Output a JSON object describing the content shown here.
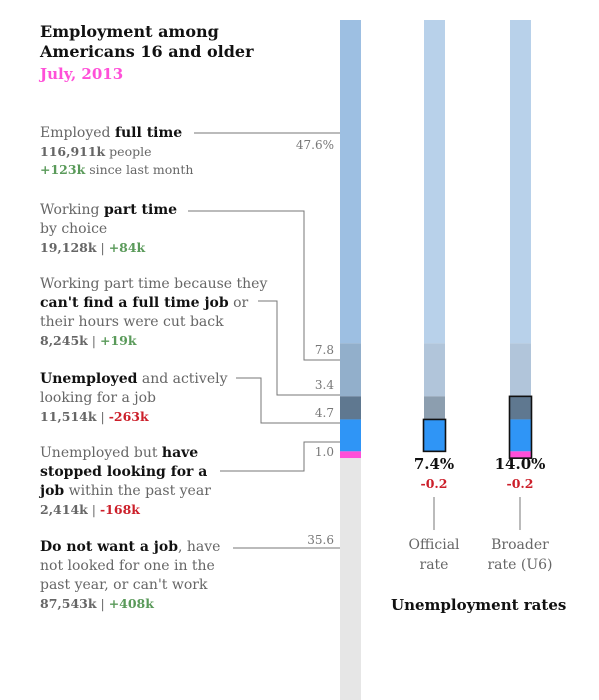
{
  "title": "Employment among Americans 16 and older",
  "title_lines": [
    "Employment among",
    "Americans 16 and older"
  ],
  "date": "July, 2013",
  "groups": [
    {
      "pre": "Employed ",
      "bold": "full time",
      "post": "",
      "stat": "116,911k",
      "stat_suffix": " people",
      "change": "+123k",
      "change_suffix": " since last month",
      "pct": "47.6%",
      "sign": "pos"
    },
    {
      "pre": "Working ",
      "bold": "part time",
      "post": " by choice",
      "stat": "19,128k",
      "change": "+84k",
      "pct": "7.8",
      "sign": "pos"
    },
    {
      "pre": "Working part time because they ",
      "bold": "can't find a full time job",
      "post": " or their hours were cut back",
      "stat": "8,245k",
      "change": "+19k",
      "pct": "3.4",
      "sign": "pos"
    },
    {
      "pre": "",
      "bold": "Unemployed",
      "post": " and actively looking for a job",
      "stat": "11,514k",
      "change": "-263k",
      "pct": "4.7",
      "sign": "neg"
    },
    {
      "pre": "Unemployed but ",
      "bold": "have stopped looking for a job",
      "post": " within the past year",
      "stat": "2,414k",
      "change": "-168k",
      "pct": "1.0",
      "sign": "neg"
    },
    {
      "pre": "",
      "bold": "Do not want a job",
      "post": ", have not looked for one in the past year, or can't work",
      "stat": "87,543k",
      "change": "+408k",
      "pct": "35.6",
      "sign": "pos"
    }
  ],
  "chart_data": {
    "type": "bar",
    "title": "Employment among Americans 16 and older",
    "subtitle": "July, 2013",
    "categories": [
      "Employed full time",
      "Working part time by choice",
      "Working part time because they can't find a full time job or their hours were cut back",
      "Unemployed and actively looking for a job",
      "Unemployed but have stopped looking for a job within the past year",
      "Do not want a job, have not looked for one in the past year, or can't work"
    ],
    "values": [
      47.6,
      7.8,
      3.4,
      4.7,
      1.0,
      35.6
    ],
    "people_k": [
      116911,
      19128,
      8245,
      11514,
      2414,
      87543
    ],
    "change_k": [
      123,
      84,
      19,
      -263,
      -168,
      408
    ],
    "colors": [
      "#9dbfe2",
      "#92afcb",
      "#5f7890",
      "#2f95f6",
      "#ff4fd8",
      "#e6e6e6"
    ],
    "rates": [
      {
        "value": "7.4%",
        "change": "-0.2",
        "label_lines": [
          "Official",
          "rate"
        ]
      },
      {
        "value": "14.0%",
        "change": "-0.2",
        "label_lines": [
          "Broader",
          "rate (U6)"
        ]
      }
    ],
    "rates_title": "Unemployment rates"
  }
}
